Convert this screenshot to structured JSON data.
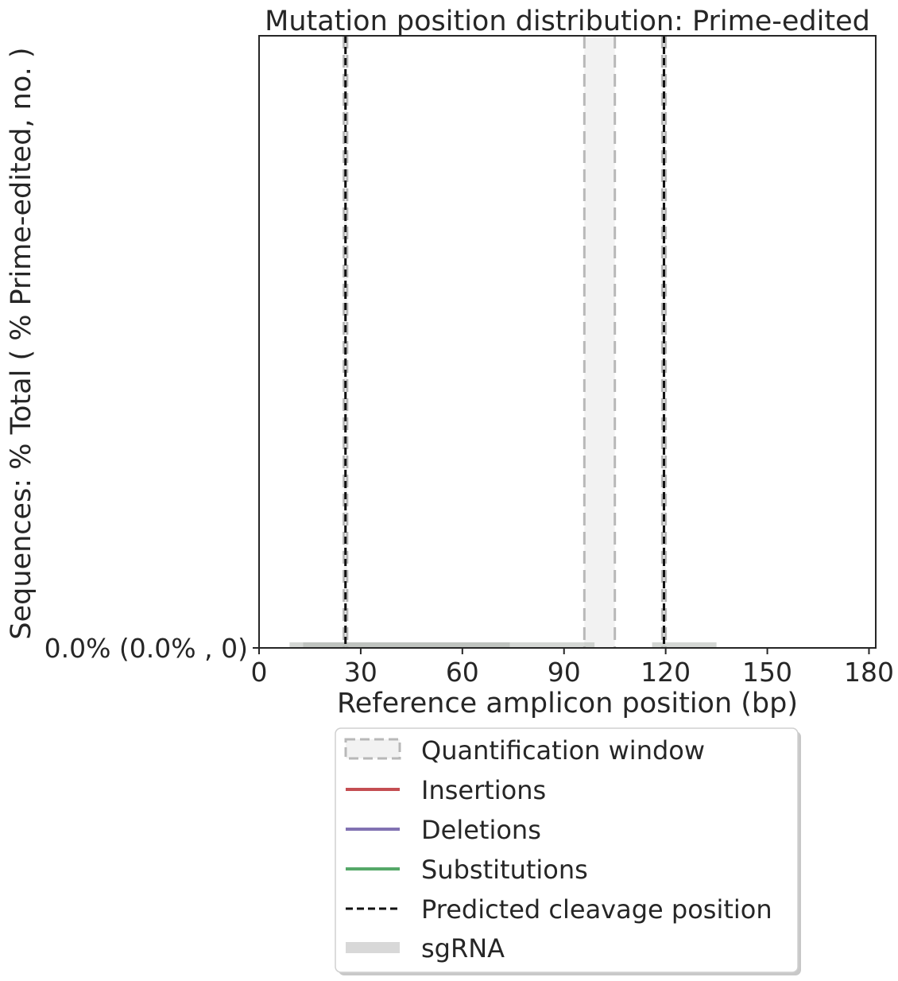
{
  "chart_data": {
    "type": "line",
    "title": "Mutation position distribution: Prime-edited",
    "xlabel": "Reference amplicon position (bp)",
    "ylabel": "Sequences: % Total ( % Prime-edited, no. )",
    "xlim": [
      0,
      182
    ],
    "ylim": [
      0,
      1
    ],
    "x_ticks": [
      0,
      30,
      60,
      90,
      120,
      150,
      180
    ],
    "x_tick_labels": [
      "0",
      "30",
      "60",
      "90",
      "120",
      "150",
      "180"
    ],
    "y_tick_labels": [
      "0.0% (0.0% , 0)"
    ],
    "grid": false,
    "legend_position": "bottom-center",
    "quantification_windows": [
      [
        25,
        26
      ],
      [
        96,
        105
      ],
      [
        119,
        120
      ]
    ],
    "predicted_cleavage_positions": [
      25.5,
      119.5
    ],
    "sgrna_spans": [
      [
        9,
        74
      ],
      [
        13,
        74
      ],
      [
        74,
        99
      ],
      [
        116,
        135
      ]
    ],
    "series": [
      {
        "name": "Insertions",
        "color": "#c44e52",
        "x": [
          0,
          182
        ],
        "y": [
          0,
          0
        ]
      },
      {
        "name": "Deletions",
        "color": "#8172b2",
        "x": [
          0,
          182
        ],
        "y": [
          0,
          0
        ]
      },
      {
        "name": "Substitutions",
        "color": "#55a868",
        "x": [
          0,
          182
        ],
        "y": [
          0,
          0
        ]
      }
    ],
    "legend": {
      "quantification_window": "Quantification window",
      "insertions": "Insertions",
      "deletions": "Deletions",
      "substitutions": "Substitutions",
      "cleavage": "Predicted cleavage position",
      "sgrna": "sgRNA"
    },
    "colors": {
      "axes": "#262626",
      "window_fill": "#f2f2f2",
      "window_edge": "#b8b8b8",
      "sgrna": "#cccccc",
      "cleavage": "#111111"
    }
  }
}
